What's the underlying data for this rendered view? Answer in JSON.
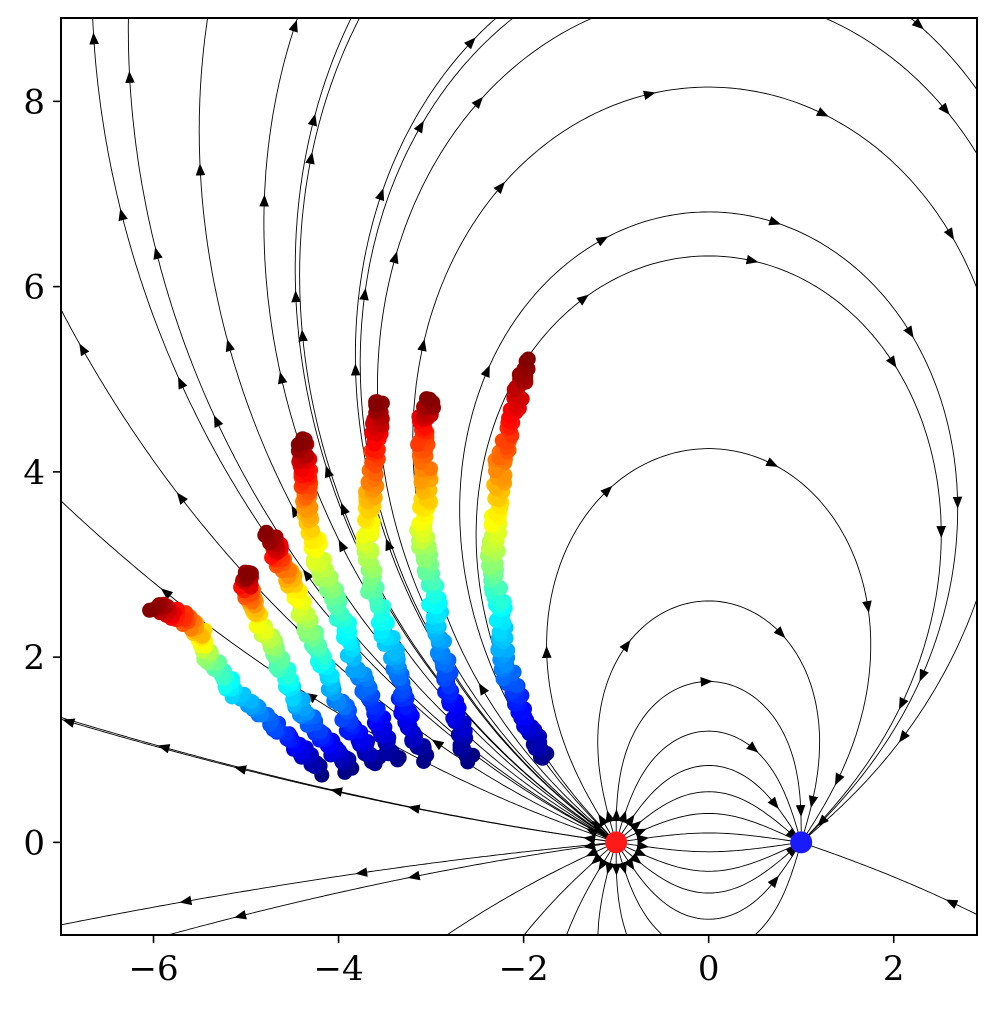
{
  "chart_data": {
    "type": "scatter",
    "title": "",
    "xlabel": "",
    "ylabel": "",
    "xlim": [
      -7,
      2.9
    ],
    "ylim": [
      -1.0,
      8.9
    ],
    "grid": false,
    "x_ticks": [
      -6,
      -4,
      -2,
      0,
      2
    ],
    "y_ticks": [
      0,
      2,
      4,
      6,
      8
    ],
    "x_tick_labels": [
      "−6",
      "−4",
      "−2",
      "0",
      "2"
    ],
    "y_tick_labels": [
      "0",
      "2",
      "4",
      "6",
      "8"
    ],
    "colormap": "jet",
    "charges": [
      {
        "x": -1,
        "y": 0,
        "color": "#ff1a1a"
      },
      {
        "x": 1,
        "y": 0,
        "color": "#1a1aff"
      }
    ],
    "trajectories": [
      {
        "waypoints": [
          [
            -4.2,
            0.75
          ],
          [
            -4.6,
            1.2
          ],
          [
            -5.1,
            1.6
          ],
          [
            -5.4,
            2.0
          ],
          [
            -5.5,
            2.25
          ],
          [
            -5.7,
            2.45
          ],
          [
            -6.0,
            2.55
          ]
        ]
      },
      {
        "waypoints": [
          [
            -3.9,
            0.8
          ],
          [
            -4.2,
            1.2
          ],
          [
            -4.5,
            1.6
          ],
          [
            -4.7,
            2.1
          ],
          [
            -4.9,
            2.5
          ],
          [
            -5.0,
            2.75
          ],
          [
            -5.0,
            2.9
          ]
        ]
      },
      {
        "waypoints": [
          [
            -3.6,
            0.85
          ],
          [
            -3.9,
            1.3
          ],
          [
            -4.1,
            1.8
          ],
          [
            -4.3,
            2.3
          ],
          [
            -4.5,
            2.8
          ],
          [
            -4.65,
            3.1
          ],
          [
            -4.75,
            3.3
          ]
        ]
      },
      {
        "waypoints": [
          [
            -3.4,
            0.9
          ],
          [
            -3.6,
            1.4
          ],
          [
            -3.8,
            1.9
          ],
          [
            -4.0,
            2.5
          ],
          [
            -4.2,
            3.0
          ],
          [
            -4.35,
            3.6
          ],
          [
            -4.35,
            4.0
          ],
          [
            -4.4,
            4.35
          ]
        ]
      },
      {
        "waypoints": [
          [
            -3.1,
            0.9
          ],
          [
            -3.3,
            1.5
          ],
          [
            -3.4,
            2.0
          ],
          [
            -3.6,
            2.6
          ],
          [
            -3.7,
            3.2
          ],
          [
            -3.65,
            3.8
          ],
          [
            -3.6,
            4.3
          ],
          [
            -3.55,
            4.8
          ]
        ]
      },
      {
        "waypoints": [
          [
            -2.6,
            0.9
          ],
          [
            -2.8,
            1.6
          ],
          [
            -2.9,
            2.2
          ],
          [
            -3.0,
            2.8
          ],
          [
            -3.1,
            3.3
          ],
          [
            -3.05,
            3.9
          ],
          [
            -3.1,
            4.5
          ],
          [
            -3.0,
            4.8
          ]
        ]
      },
      {
        "waypoints": [
          [
            -1.8,
            0.9
          ],
          [
            -2.0,
            1.4
          ],
          [
            -2.2,
            1.9
          ],
          [
            -2.25,
            2.5
          ],
          [
            -2.35,
            3.0
          ],
          [
            -2.3,
            3.5
          ],
          [
            -2.25,
            4.1
          ],
          [
            -2.1,
            4.6
          ],
          [
            -2.0,
            5.2
          ]
        ]
      }
    ]
  }
}
